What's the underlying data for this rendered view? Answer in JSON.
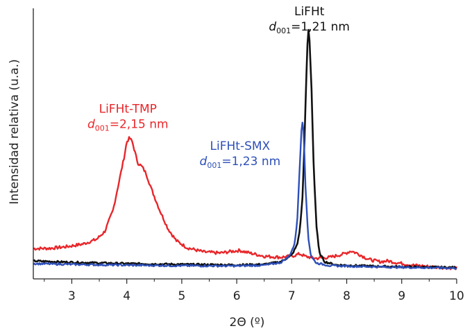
{
  "chart_data": {
    "type": "line",
    "title": "",
    "xlabel": "2Θ (º)",
    "ylabel": "Intensidad relativa (u.a.)",
    "xlim": [
      2.3,
      10.0
    ],
    "ylim": [
      0,
      100
    ],
    "x_ticks": [
      3,
      4,
      5,
      6,
      7,
      8,
      9,
      10
    ],
    "grid": false,
    "legend": "none",
    "series": [
      {
        "name": "LiFHt-TMP",
        "color": "#e8262a",
        "points": [
          [
            2.3,
            11.5
          ],
          [
            2.6,
            11.6
          ],
          [
            2.9,
            12.2
          ],
          [
            3.2,
            13.2
          ],
          [
            3.45,
            15
          ],
          [
            3.6,
            18
          ],
          [
            3.75,
            26
          ],
          [
            3.85,
            36
          ],
          [
            3.95,
            46
          ],
          [
            4.0,
            52
          ],
          [
            4.05,
            53.5
          ],
          [
            4.1,
            52
          ],
          [
            4.15,
            48
          ],
          [
            4.2,
            44
          ],
          [
            4.28,
            42.5
          ],
          [
            4.35,
            40
          ],
          [
            4.45,
            34
          ],
          [
            4.6,
            26
          ],
          [
            4.75,
            19
          ],
          [
            4.9,
            14.5
          ],
          [
            5.1,
            11.8
          ],
          [
            5.4,
            10.2
          ],
          [
            5.7,
            9.8
          ],
          [
            5.9,
            10.4
          ],
          [
            6.05,
            10.8
          ],
          [
            6.2,
            10
          ],
          [
            6.5,
            8.6
          ],
          [
            6.8,
            8.2
          ],
          [
            7.0,
            8.6
          ],
          [
            7.15,
            9.5
          ],
          [
            7.25,
            8.5
          ],
          [
            7.45,
            7.8
          ],
          [
            7.7,
            8.2
          ],
          [
            7.95,
            9.5
          ],
          [
            8.08,
            10.6
          ],
          [
            8.2,
            9.6
          ],
          [
            8.4,
            7.4
          ],
          [
            8.6,
            6.5
          ],
          [
            8.75,
            6.8
          ],
          [
            8.9,
            6.2
          ],
          [
            9.2,
            5.2
          ],
          [
            9.6,
            4.5
          ],
          [
            10.0,
            4.1
          ]
        ]
      },
      {
        "name": "LiFHt",
        "color": "#111111",
        "points": [
          [
            2.3,
            6.8
          ],
          [
            3.0,
            6.3
          ],
          [
            4.0,
            5.8
          ],
          [
            5.0,
            5.5
          ],
          [
            6.0,
            5.3
          ],
          [
            6.5,
            5.5
          ],
          [
            6.8,
            6.5
          ],
          [
            7.0,
            9
          ],
          [
            7.1,
            13
          ],
          [
            7.15,
            19
          ],
          [
            7.2,
            32
          ],
          [
            7.24,
            58
          ],
          [
            7.28,
            86
          ],
          [
            7.3,
            95
          ],
          [
            7.32,
            92
          ],
          [
            7.36,
            72
          ],
          [
            7.4,
            42
          ],
          [
            7.45,
            20
          ],
          [
            7.5,
            10
          ],
          [
            7.6,
            6.5
          ],
          [
            7.8,
            5.3
          ],
          [
            8.5,
            4.8
          ],
          [
            9.0,
            4.6
          ],
          [
            10.0,
            4.3
          ]
        ]
      },
      {
        "name": "LiFHt-SMX",
        "color": "#2d4fb8",
        "points": [
          [
            2.3,
            5.8
          ],
          [
            3.0,
            5.5
          ],
          [
            4.0,
            5.2
          ],
          [
            5.0,
            5.0
          ],
          [
            6.0,
            4.9
          ],
          [
            6.5,
            5.2
          ],
          [
            6.8,
            6.2
          ],
          [
            6.95,
            8.5
          ],
          [
            7.05,
            13
          ],
          [
            7.1,
            22
          ],
          [
            7.14,
            40
          ],
          [
            7.18,
            58
          ],
          [
            7.2,
            60
          ],
          [
            7.22,
            55
          ],
          [
            7.25,
            35
          ],
          [
            7.3,
            16
          ],
          [
            7.35,
            8.5
          ],
          [
            7.45,
            6
          ],
          [
            7.7,
            5
          ],
          [
            8.5,
            4.6
          ],
          [
            9.0,
            4.4
          ],
          [
            10.0,
            4.1
          ]
        ]
      }
    ],
    "annotations": [
      {
        "label": "LiFHt",
        "d_main": "d",
        "d_sub": "001",
        "d_value": "=1,21 nm",
        "color": "#111111",
        "x": 7.32,
        "y": 100
      },
      {
        "label": "LiFHt-TMP",
        "d_main": "d",
        "d_sub": "001",
        "d_value": "=2,15 nm",
        "color": "#e8262a",
        "x": 4.02,
        "y": 63
      },
      {
        "label": "LiFHt-SMX",
        "d_main": "d",
        "d_sub": "001",
        "d_value": "=1,23 nm",
        "color": "#2d4fb8",
        "x": 6.06,
        "y": 49
      }
    ]
  }
}
